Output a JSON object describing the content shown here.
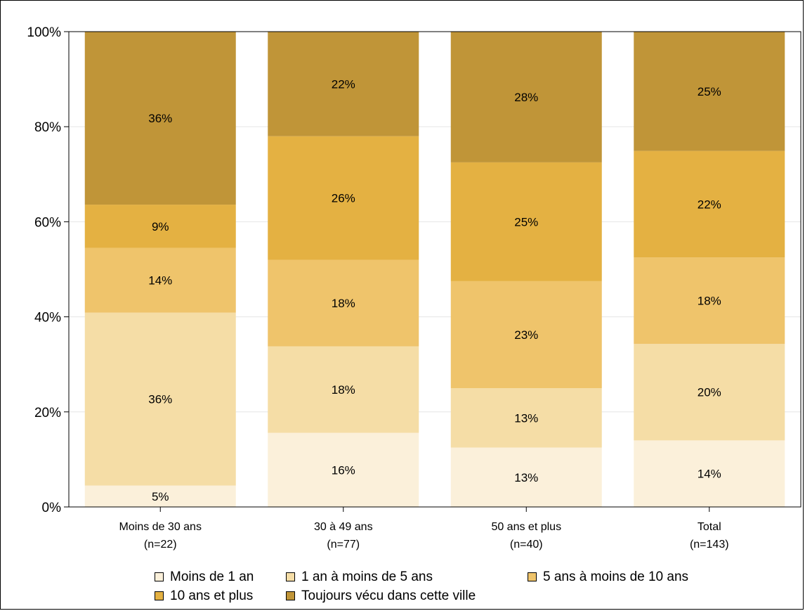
{
  "chart_data": {
    "type": "bar",
    "stacked": true,
    "title": "",
    "xlabel": "",
    "ylabel": "",
    "ylim": [
      0,
      100
    ],
    "yticks": [
      "0%",
      "20%",
      "40%",
      "60%",
      "80%",
      "100%"
    ],
    "ytick_values": [
      0,
      20,
      40,
      60,
      80,
      100
    ],
    "grid": true,
    "legend_position": "bottom",
    "categories": [
      {
        "name": "Moins de 30 ans",
        "n": "(n=22)"
      },
      {
        "name": "30 à 49 ans",
        "n": "(n=77)"
      },
      {
        "name": "50 ans et plus",
        "n": "(n=40)"
      },
      {
        "name": "Total",
        "n": "(n=143)"
      }
    ],
    "series": [
      {
        "name": "Moins de 1 an",
        "color": "#fbf0da",
        "values": [
          4.5,
          15.6,
          12.5,
          14.0
        ],
        "labels": [
          "5%",
          "16%",
          "13%",
          "14%"
        ]
      },
      {
        "name": "1 an à moins de 5 ans",
        "color": "#f5dda6",
        "values": [
          36.4,
          18.2,
          12.5,
          20.3
        ],
        "labels": [
          "36%",
          "18%",
          "13%",
          "20%"
        ]
      },
      {
        "name": "5 ans à moins de 10 ans",
        "color": "#efc46b",
        "values": [
          13.6,
          18.2,
          22.5,
          18.2
        ],
        "labels": [
          "14%",
          "18%",
          "23%",
          "18%"
        ]
      },
      {
        "name": "10 ans et plus",
        "color": "#e4b142",
        "values": [
          9.1,
          26.0,
          25.0,
          22.4
        ],
        "labels": [
          "9%",
          "26%",
          "25%",
          "22%"
        ]
      },
      {
        "name": "Toujours vécu dans cette ville",
        "color": "#c09538",
        "values": [
          36.4,
          22.0,
          27.5,
          25.1
        ],
        "labels": [
          "36%",
          "22%",
          "28%",
          "25%"
        ]
      }
    ]
  }
}
